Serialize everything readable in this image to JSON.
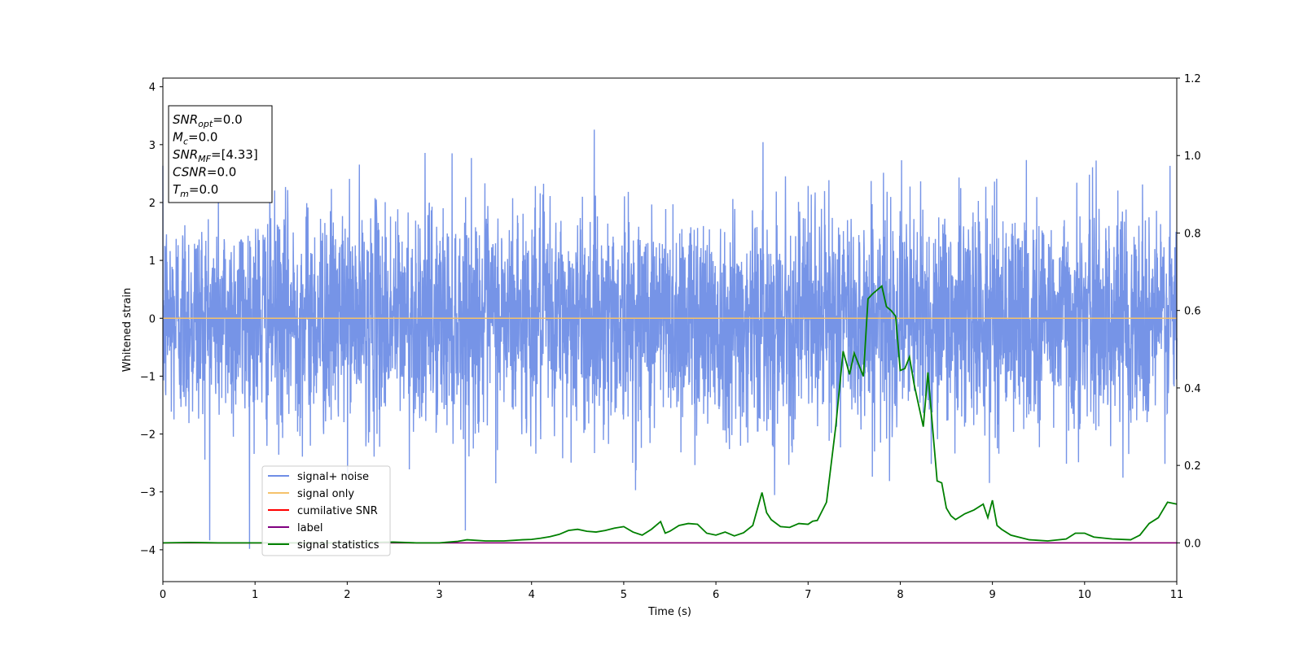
{
  "chart_data": {
    "type": "line",
    "title": "",
    "xlabel": "Time (s)",
    "ylabel": "Whitened strain",
    "y2label": "",
    "xlim": [
      0,
      11
    ],
    "ylim": [
      -4.55,
      4.15
    ],
    "y2lim": [
      -0.1,
      1.2
    ],
    "x_ticks": [
      "0",
      "1",
      "2",
      "3",
      "4",
      "5",
      "6",
      "7",
      "8",
      "9",
      "10",
      "11"
    ],
    "y_ticks": [
      "4",
      "3",
      "2",
      "1",
      "0",
      "−1",
      "−2",
      "−3",
      "−4"
    ],
    "y2_ticks": [
      "1.2",
      "1.0",
      "0.8",
      "0.6",
      "0.4",
      "0.2",
      "0.0"
    ],
    "grid": false,
    "legend_position": "lower-left",
    "annotation": [
      {
        "main": "SNR",
        "sub": "opt",
        "value": "=0.0"
      },
      {
        "main": "M",
        "sub": "c",
        "value": "=0.0"
      },
      {
        "main": "SNR",
        "sub": "MF",
        "value": "=[4.33]"
      },
      {
        "main": "CSNR",
        "sub": "",
        "value": "=0.0"
      },
      {
        "main": "T",
        "sub": "m",
        "value": "=0.0"
      }
    ],
    "series": [
      {
        "name": "signal+ noise",
        "color": "#6f8ee6",
        "axis": "left",
        "style": "noise",
        "sigma": 0.95,
        "sample_rate": 1000,
        "dense": true
      },
      {
        "name": "signal only",
        "color": "#f5c26b",
        "axis": "left",
        "constant": 0
      },
      {
        "name": "cumilative SNR",
        "color": "#ff0000",
        "axis": "right",
        "constant": 0
      },
      {
        "name": "label",
        "color": "#800080",
        "axis": "right",
        "constant": 0
      },
      {
        "name": "signal statistics",
        "color": "#008000",
        "axis": "right",
        "x": [
          0,
          0.3,
          0.6,
          1.0,
          1.5,
          2.0,
          2.5,
          2.75,
          3.0,
          3.1,
          3.2,
          3.3,
          3.5,
          3.7,
          3.9,
          4.0,
          4.1,
          4.2,
          4.3,
          4.4,
          4.5,
          4.6,
          4.7,
          4.8,
          4.9,
          5.0,
          5.1,
          5.2,
          5.3,
          5.4,
          5.45,
          5.5,
          5.6,
          5.7,
          5.8,
          5.9,
          6.0,
          6.1,
          6.2,
          6.3,
          6.4,
          6.5,
          6.55,
          6.6,
          6.7,
          6.8,
          6.9,
          7.0,
          7.05,
          7.1,
          7.2,
          7.3,
          7.38,
          7.45,
          7.5,
          7.6,
          7.65,
          7.7,
          7.8,
          7.85,
          7.9,
          7.95,
          8.0,
          8.05,
          8.1,
          8.15,
          8.25,
          8.3,
          8.4,
          8.45,
          8.5,
          8.55,
          8.6,
          8.7,
          8.8,
          8.9,
          8.95,
          9.0,
          9.05,
          9.1,
          9.2,
          9.4,
          9.6,
          9.8,
          9.9,
          10.0,
          10.05,
          10.1,
          10.3,
          10.5,
          10.6,
          10.65,
          10.7,
          10.8,
          10.9,
          11.0
        ],
        "values": [
          0.0,
          0.001,
          0.0,
          0.0,
          0.0,
          0.0,
          0.002,
          0.0,
          0.0,
          0.002,
          0.004,
          0.008,
          0.005,
          0.005,
          0.008,
          0.009,
          0.012,
          0.016,
          0.022,
          0.032,
          0.035,
          0.03,
          0.028,
          0.032,
          0.038,
          0.042,
          0.028,
          0.02,
          0.035,
          0.055,
          0.025,
          0.03,
          0.045,
          0.05,
          0.048,
          0.025,
          0.02,
          0.028,
          0.018,
          0.026,
          0.045,
          0.13,
          0.078,
          0.06,
          0.042,
          0.04,
          0.05,
          0.048,
          0.056,
          0.058,
          0.105,
          0.3,
          0.495,
          0.435,
          0.49,
          0.43,
          0.63,
          0.643,
          0.663,
          0.61,
          0.6,
          0.585,
          0.445,
          0.45,
          0.48,
          0.41,
          0.3,
          0.44,
          0.16,
          0.155,
          0.09,
          0.07,
          0.06,
          0.075,
          0.085,
          0.1,
          0.065,
          0.11,
          0.045,
          0.035,
          0.02,
          0.008,
          0.005,
          0.01,
          0.025,
          0.025,
          0.02,
          0.015,
          0.01,
          0.008,
          0.02,
          0.035,
          0.05,
          0.065,
          0.105,
          0.1
        ]
      }
    ]
  }
}
